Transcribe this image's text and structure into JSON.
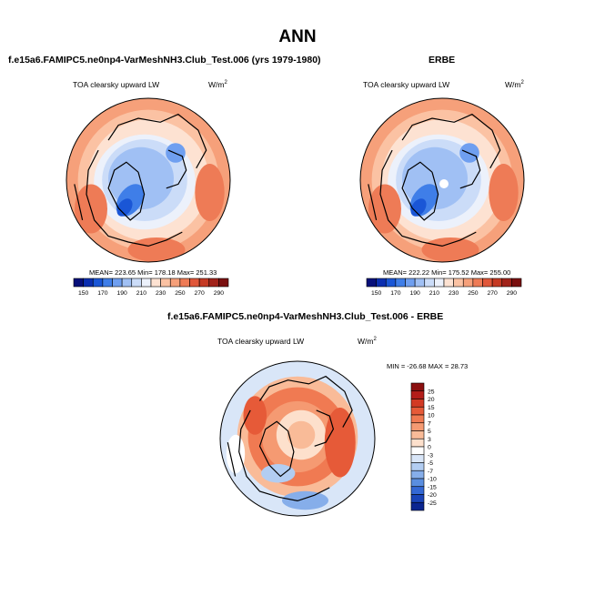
{
  "figure": {
    "title": "ANN"
  },
  "chart_data": [
    {
      "type": "heatmap",
      "projection": "north-polar-stereographic",
      "panel_title": "f.e15a6.FAMIPC5.ne0np4-VarMeshNH3.Club_Test.006 (yrs 1979-1980)",
      "variable": "TOA clearsky upward LW",
      "units": "W/m",
      "units_exp": "2",
      "stats": {
        "mean": 223.65,
        "min": 178.18,
        "max": 251.33
      },
      "stats_text": "MEAN= 223.65  Min= 178.18  Max= 251.33",
      "colorbar": {
        "orientation": "horizontal",
        "levels": [
          150,
          170,
          190,
          210,
          230,
          250,
          270,
          290
        ],
        "colors": [
          "#08107a",
          "#0b2eb0",
          "#1a56d6",
          "#3f7ee8",
          "#6f9ff0",
          "#a0c0f4",
          "#cbdcf8",
          "#ecf1fb",
          "#fde2d2",
          "#fbc2a3",
          "#f6a07a",
          "#ee7b56",
          "#e0573a",
          "#c53a24",
          "#a1231a",
          "#7a1010"
        ]
      }
    },
    {
      "type": "heatmap",
      "projection": "north-polar-stereographic",
      "panel_title": "ERBE",
      "variable": "TOA clearsky upward LW",
      "units": "W/m",
      "units_exp": "2",
      "stats": {
        "mean": 222.22,
        "min": 175.52,
        "max": 255.0
      },
      "stats_text": "MEAN= 222.22  Min= 175.52  Max= 255.00",
      "colorbar": {
        "orientation": "horizontal",
        "levels": [
          150,
          170,
          190,
          210,
          230,
          250,
          270,
          290
        ],
        "colors": [
          "#08107a",
          "#0b2eb0",
          "#1a56d6",
          "#3f7ee8",
          "#6f9ff0",
          "#a0c0f4",
          "#cbdcf8",
          "#ecf1fb",
          "#fde2d2",
          "#fbc2a3",
          "#f6a07a",
          "#ee7b56",
          "#e0573a",
          "#c53a24",
          "#a1231a",
          "#7a1010"
        ]
      }
    },
    {
      "type": "heatmap",
      "projection": "north-polar-stereographic",
      "panel_title": "f.e15a6.FAMIPC5.ne0np4-VarMeshNH3.Club_Test.006 - ERBE",
      "variable": "TOA clearsky upward LW",
      "units": "W/m",
      "units_exp": "2",
      "stats": {
        "min": -26.68,
        "max": 28.73
      },
      "stats_text": "MIN = -26.68 MAX =  28.73",
      "colorbar": {
        "orientation": "vertical",
        "levels": [
          25,
          20,
          15,
          10,
          7,
          5,
          3,
          0,
          -3,
          -5,
          -7,
          -10,
          -15,
          -20,
          -25
        ],
        "colors": [
          "#8b0f0f",
          "#b31d1a",
          "#d23a24",
          "#e65a38",
          "#f07a52",
          "#f59a72",
          "#f9bb98",
          "#fde0cc",
          "#ffffff",
          "#d9e6f8",
          "#b2cdf2",
          "#86aeea",
          "#5a8ee0",
          "#3468d4",
          "#1a44b8",
          "#0b2590"
        ]
      }
    }
  ]
}
